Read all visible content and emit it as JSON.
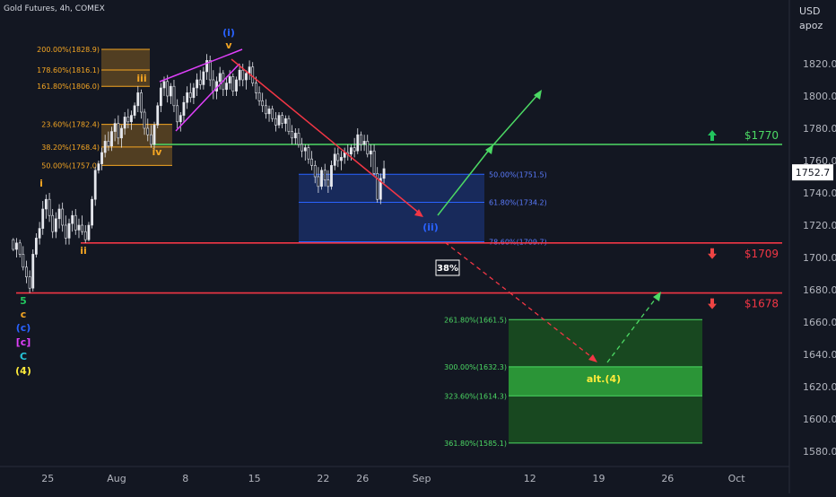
{
  "chart_data": {
    "type": "candlestick",
    "title": "Gold Futures, 4h, COMEX",
    "currency": "USD",
    "scale_label": "apoz",
    "last_price": "1752.7",
    "ylim": [
      1570,
      1850
    ],
    "y_ticks": [
      "1820.0",
      "1800.0",
      "1780.0",
      "1760.0",
      "1740.0",
      "1720.0",
      "1700.0",
      "1680.0",
      "1660.0",
      "1640.0",
      "1620.0",
      "1600.0",
      "1580.0"
    ],
    "y_tick_values": [
      1820,
      1800,
      1780,
      1760,
      1740,
      1720,
      1700,
      1680,
      1660,
      1640,
      1620,
      1600,
      1580
    ],
    "x_ticks": [
      "25",
      "Aug",
      "8",
      "15",
      "22",
      "26",
      "Sep",
      "12",
      "19",
      "26",
      "Oct"
    ],
    "x_tick_days": [
      -7,
      0,
      7,
      14,
      21,
      25,
      31,
      42,
      49,
      56,
      63
    ],
    "xlim": [
      -10.5,
      67
    ],
    "colors": {
      "up": "#089981",
      "down": "#f23645",
      "support": "#f23645",
      "resistance": "#4cd964",
      "up_arrow": "#22c55e",
      "down_arrow": "#ef4444"
    },
    "levels": [
      {
        "price": 1770,
        "label": "$1770",
        "color": "#4cd964",
        "arrow": "up"
      },
      {
        "price": 1709,
        "label": "$1709",
        "color": "#f23645",
        "arrow": "down"
      },
      {
        "price": 1678,
        "label": "$1678",
        "color": "#f23645",
        "arrow": "down"
      }
    ],
    "candles": [
      [
        -10.5,
        1711,
        1712,
        1704,
        1705
      ],
      [
        -10.17,
        1705,
        1712,
        1700,
        1709
      ],
      [
        -9.83,
        1709,
        1711,
        1700,
        1702
      ],
      [
        -9.5,
        1702,
        1707,
        1692,
        1694
      ],
      [
        -9.17,
        1694,
        1698,
        1684,
        1688
      ],
      [
        -8.83,
        1688,
        1692,
        1678,
        1681
      ],
      [
        -8.5,
        1681,
        1705,
        1679,
        1702
      ],
      [
        -8.17,
        1702,
        1715,
        1700,
        1712
      ],
      [
        -7.83,
        1712,
        1722,
        1708,
        1718
      ],
      [
        -7.5,
        1718,
        1735,
        1714,
        1730
      ],
      [
        -7.17,
        1730,
        1739,
        1724,
        1736
      ],
      [
        -6.83,
        1736,
        1740,
        1722,
        1726
      ],
      [
        -6.5,
        1726,
        1730,
        1712,
        1716
      ],
      [
        -6.17,
        1716,
        1728,
        1712,
        1724
      ],
      [
        -5.83,
        1724,
        1733,
        1718,
        1730
      ],
      [
        -5.5,
        1730,
        1734,
        1716,
        1720
      ],
      [
        -5.17,
        1720,
        1726,
        1708,
        1712
      ],
      [
        -4.83,
        1712,
        1724,
        1708,
        1721
      ],
      [
        -4.5,
        1721,
        1729,
        1716,
        1726
      ],
      [
        -4.17,
        1726,
        1730,
        1714,
        1717
      ],
      [
        -3.83,
        1717,
        1724,
        1712,
        1720
      ],
      [
        -3.5,
        1720,
        1726,
        1714,
        1716
      ],
      [
        -3.17,
        1716,
        1720,
        1709,
        1711
      ],
      [
        -2.83,
        1711,
        1722,
        1710,
        1720
      ],
      [
        -2.5,
        1720,
        1738,
        1718,
        1736
      ],
      [
        -2.17,
        1736,
        1756,
        1732,
        1754
      ],
      [
        -1.83,
        1754,
        1760,
        1752,
        1758
      ],
      [
        -1.5,
        1758,
        1768,
        1754,
        1765
      ],
      [
        -1.17,
        1765,
        1776,
        1762,
        1772
      ],
      [
        -0.83,
        1772,
        1778,
        1766,
        1769
      ],
      [
        -0.5,
        1769,
        1781,
        1766,
        1778
      ],
      [
        -0.17,
        1778,
        1786,
        1772,
        1783
      ],
      [
        0.17,
        1783,
        1788,
        1770,
        1774
      ],
      [
        0.5,
        1774,
        1782,
        1768,
        1780
      ],
      [
        0.83,
        1780,
        1790,
        1776,
        1787
      ],
      [
        1.17,
        1787,
        1792,
        1780,
        1784
      ],
      [
        1.5,
        1784,
        1791,
        1779,
        1788
      ],
      [
        1.83,
        1788,
        1796,
        1786,
        1794
      ],
      [
        2.17,
        1794,
        1806,
        1790,
        1802
      ],
      [
        2.5,
        1802,
        1804,
        1786,
        1790
      ],
      [
        2.83,
        1790,
        1792,
        1776,
        1780
      ],
      [
        3.17,
        1780,
        1786,
        1772,
        1776
      ],
      [
        3.5,
        1776,
        1782,
        1768,
        1770
      ],
      [
        3.83,
        1770,
        1784,
        1766,
        1782
      ],
      [
        4.17,
        1782,
        1796,
        1780,
        1794
      ],
      [
        4.5,
        1794,
        1808,
        1790,
        1805
      ],
      [
        4.83,
        1805,
        1812,
        1800,
        1809
      ],
      [
        5.17,
        1809,
        1813,
        1796,
        1800
      ],
      [
        5.5,
        1800,
        1808,
        1795,
        1806
      ],
      [
        5.83,
        1806,
        1810,
        1790,
        1794
      ],
      [
        6.17,
        1794,
        1798,
        1780,
        1784
      ],
      [
        6.5,
        1784,
        1790,
        1778,
        1788
      ],
      [
        6.83,
        1788,
        1800,
        1784,
        1796
      ],
      [
        7.17,
        1796,
        1806,
        1792,
        1802
      ],
      [
        7.5,
        1802,
        1808,
        1796,
        1799
      ],
      [
        7.83,
        1799,
        1808,
        1795,
        1805
      ],
      [
        8.17,
        1805,
        1814,
        1800,
        1810
      ],
      [
        8.5,
        1810,
        1816,
        1804,
        1807
      ],
      [
        8.83,
        1807,
        1818,
        1804,
        1815
      ],
      [
        9.17,
        1815,
        1826,
        1810,
        1822
      ],
      [
        9.5,
        1822,
        1825,
        1806,
        1810
      ],
      [
        9.83,
        1810,
        1816,
        1798,
        1803
      ],
      [
        10.17,
        1803,
        1812,
        1798,
        1809
      ],
      [
        10.5,
        1809,
        1818,
        1804,
        1814
      ],
      [
        10.83,
        1814,
        1816,
        1800,
        1804
      ],
      [
        11.17,
        1804,
        1812,
        1800,
        1808
      ],
      [
        11.5,
        1808,
        1816,
        1804,
        1812
      ],
      [
        11.83,
        1812,
        1814,
        1800,
        1803
      ],
      [
        12.17,
        1803,
        1812,
        1800,
        1810
      ],
      [
        12.5,
        1810,
        1820,
        1806,
        1816
      ],
      [
        12.83,
        1816,
        1820,
        1806,
        1810
      ],
      [
        13.17,
        1810,
        1816,
        1804,
        1814
      ],
      [
        13.5,
        1814,
        1822,
        1810,
        1818
      ],
      [
        13.83,
        1818,
        1821,
        1806,
        1808
      ],
      [
        14.17,
        1808,
        1812,
        1798,
        1802
      ],
      [
        14.5,
        1802,
        1806,
        1794,
        1797
      ],
      [
        14.83,
        1797,
        1802,
        1790,
        1794
      ],
      [
        15.17,
        1794,
        1798,
        1786,
        1789
      ],
      [
        15.5,
        1789,
        1794,
        1784,
        1792
      ],
      [
        15.83,
        1792,
        1794,
        1784,
        1786
      ],
      [
        16.17,
        1786,
        1790,
        1778,
        1782
      ],
      [
        16.5,
        1782,
        1790,
        1780,
        1788
      ],
      [
        16.83,
        1788,
        1790,
        1780,
        1783
      ],
      [
        17.17,
        1783,
        1788,
        1778,
        1786
      ],
      [
        17.5,
        1786,
        1788,
        1776,
        1778
      ],
      [
        17.83,
        1778,
        1782,
        1770,
        1774
      ],
      [
        18.17,
        1774,
        1780,
        1770,
        1777
      ],
      [
        18.5,
        1777,
        1780,
        1768,
        1770
      ],
      [
        18.83,
        1770,
        1774,
        1762,
        1766
      ],
      [
        19.17,
        1766,
        1770,
        1760,
        1768
      ],
      [
        19.5,
        1768,
        1770,
        1758,
        1761
      ],
      [
        19.83,
        1761,
        1766,
        1754,
        1757
      ],
      [
        20.17,
        1757,
        1760,
        1746,
        1750
      ],
      [
        20.5,
        1750,
        1756,
        1740,
        1744
      ],
      [
        20.83,
        1744,
        1756,
        1742,
        1754
      ],
      [
        21.17,
        1754,
        1758,
        1744,
        1748
      ],
      [
        21.5,
        1748,
        1754,
        1740,
        1744
      ],
      [
        21.83,
        1744,
        1760,
        1742,
        1757
      ],
      [
        22.17,
        1757,
        1768,
        1754,
        1764
      ],
      [
        22.5,
        1764,
        1768,
        1756,
        1760
      ],
      [
        22.83,
        1760,
        1766,
        1754,
        1762
      ],
      [
        23.17,
        1762,
        1768,
        1758,
        1765
      ],
      [
        23.5,
        1765,
        1770,
        1760,
        1764
      ],
      [
        23.83,
        1764,
        1770,
        1760,
        1768
      ],
      [
        24.17,
        1768,
        1774,
        1762,
        1766
      ],
      [
        24.5,
        1766,
        1780,
        1764,
        1776
      ],
      [
        24.83,
        1776,
        1778,
        1766,
        1770
      ],
      [
        25.17,
        1770,
        1776,
        1766,
        1772
      ],
      [
        25.5,
        1772,
        1776,
        1762,
        1764
      ],
      [
        25.83,
        1764,
        1770,
        1756,
        1766
      ],
      [
        26.17,
        1766,
        1770,
        1750,
        1752
      ],
      [
        26.5,
        1752,
        1756,
        1734,
        1736
      ],
      [
        26.83,
        1736,
        1752,
        1733,
        1749
      ],
      [
        27.17,
        1749,
        1760,
        1746,
        1755
      ]
    ]
  },
  "annotations": {
    "fib_top": [
      {
        "price": 1828.9,
        "label": "200.00%(1828.9)"
      },
      {
        "price": 1816.1,
        "label": "178.60%(1816.1)"
      },
      {
        "price": 1806.0,
        "label": "161.80%(1806.0)"
      }
    ],
    "fib_mid": [
      {
        "price": 1782.4,
        "label": "23.60%(1782.4)"
      },
      {
        "price": 1768.4,
        "label": "38.20%(1768.4)"
      },
      {
        "price": 1757.0,
        "label": "50.00%(1757.0)"
      }
    ],
    "fib_blue": [
      {
        "price": 1751.5,
        "label": "50.00%(1751.5)"
      },
      {
        "price": 1734.2,
        "label": "61.80%(1734.2)"
      },
      {
        "price": 1709.7,
        "label": "78.60%(1709.7)"
      }
    ],
    "fib_green": [
      {
        "price": 1661.5,
        "label": "261.80%(1661.5)"
      },
      {
        "price": 1632.3,
        "label": "300.00%(1632.3)"
      },
      {
        "price": 1614.3,
        "label": "323.60%(1614.3)"
      },
      {
        "price": 1585.1,
        "label": "361.80%(1585.1)"
      }
    ],
    "wave_labels": [
      {
        "text": "(i)",
        "color": "#2962ff"
      },
      {
        "text": "v",
        "color": "#f5a623"
      },
      {
        "text": "iii",
        "color": "#f5a623"
      },
      {
        "text": "iv",
        "color": "#f5a623"
      },
      {
        "text": "i",
        "color": "#f5a623"
      },
      {
        "text": "ii",
        "color": "#f5a623"
      },
      {
        "text": "(ii)",
        "color": "#2962ff"
      },
      {
        "text": "5",
        "color": "#22c55e"
      },
      {
        "text": "c",
        "color": "#f5a623"
      },
      {
        "text": "(c)",
        "color": "#2962ff"
      },
      {
        "text": "[c]",
        "color": "#e040fb"
      },
      {
        "text": "C",
        "color": "#26c6da"
      },
      {
        "text": "(4)",
        "color": "#ffeb3b"
      },
      {
        "text": "alt.(4)",
        "color": "#ffeb3b"
      }
    ],
    "probability_badge": "38%"
  }
}
